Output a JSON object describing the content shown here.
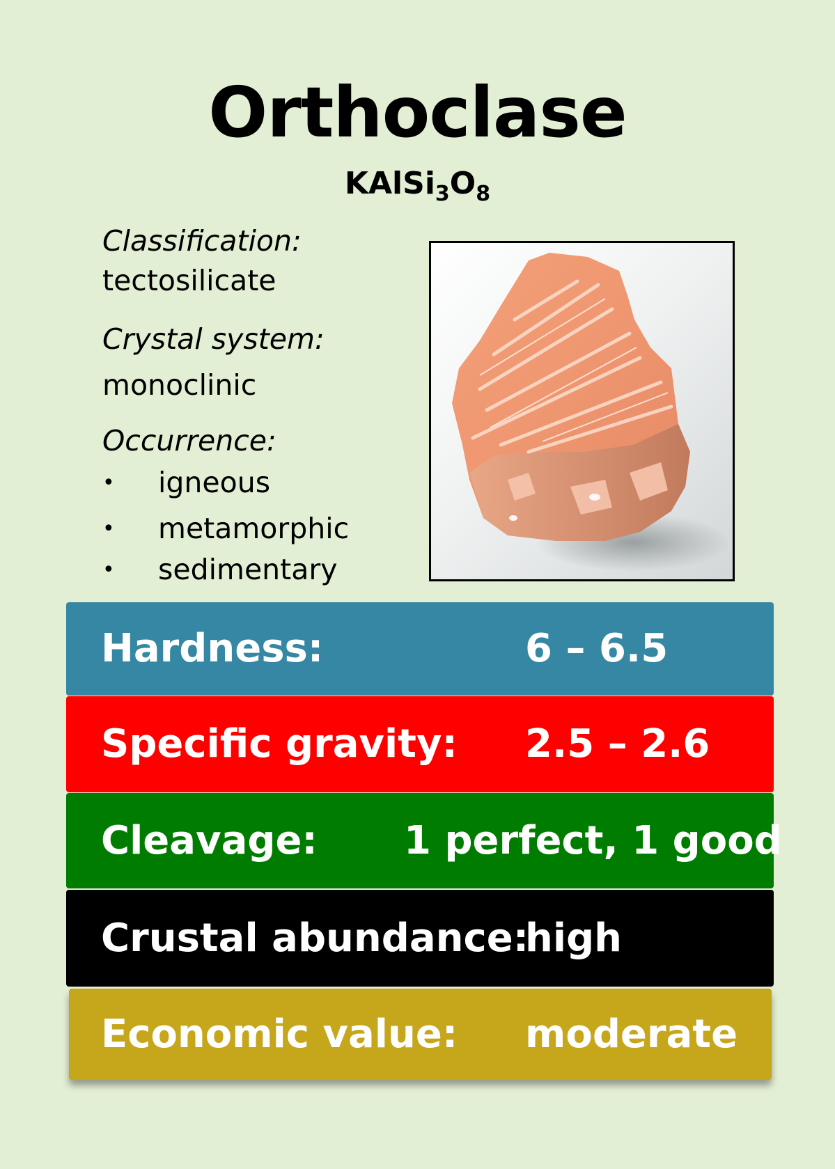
{
  "title": "Orthoclase",
  "formula": {
    "base1": "KAlSi",
    "sub1": "3",
    "base2": "O",
    "sub2": "8"
  },
  "info": {
    "classification_label": "Classification:",
    "classification_value": "tectosilicate",
    "crystal_label": "Crystal system:",
    "crystal_value": "monoclinic",
    "occurrence_label": "Occurrence:",
    "occurrence_items": [
      "igneous",
      "metamorphic",
      "sedimentary"
    ],
    "bullet": "•"
  },
  "properties": [
    {
      "label": "Hardness:",
      "value": "6 – 6.5",
      "color": "#3587a4"
    },
    {
      "label": "Specific gravity:",
      "value": "2.5 – 2.6",
      "color": "#ff0000"
    },
    {
      "label": "Cleavage:",
      "value": "1 perfect, 1 good",
      "color": "#007d00"
    },
    {
      "label": "Crustal abundance:",
      "value": "high",
      "color": "#000000"
    },
    {
      "label": "Economic value:",
      "value": "moderate",
      "color": "#c6a61b"
    }
  ]
}
